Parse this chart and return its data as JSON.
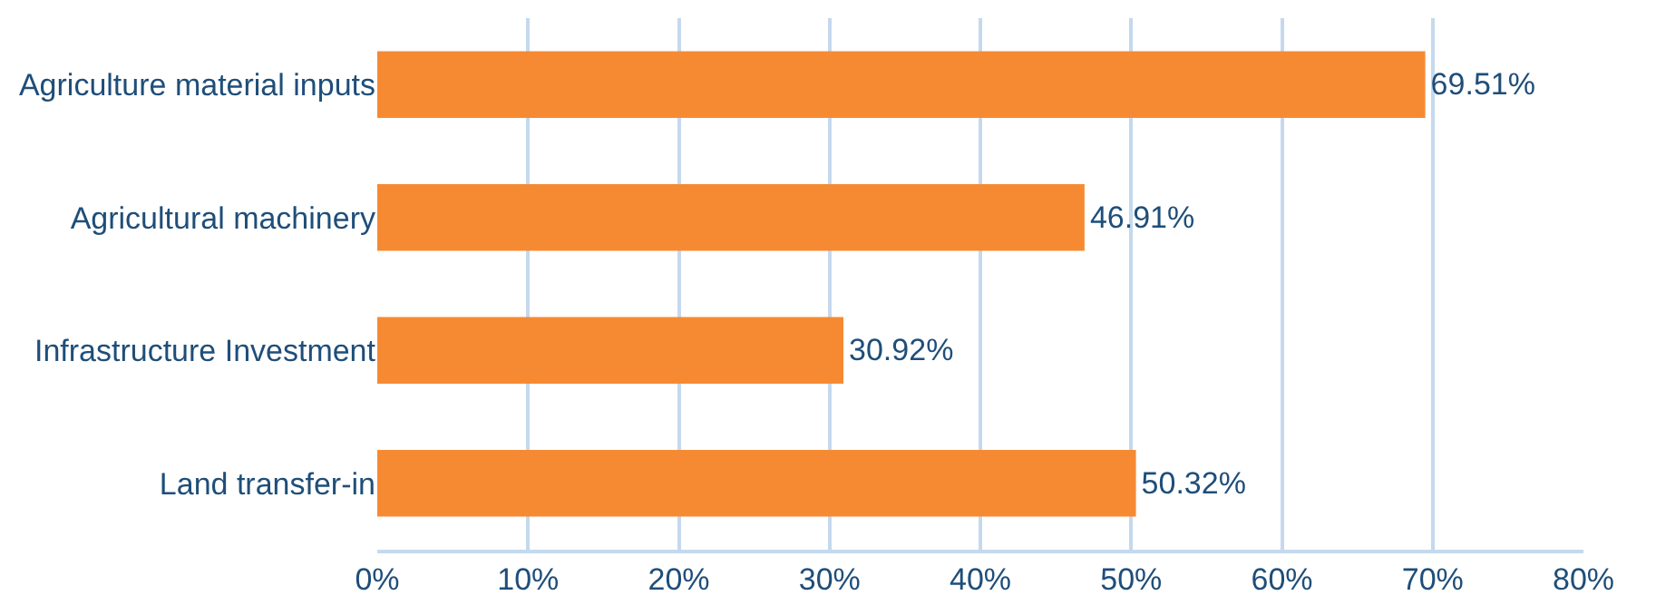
{
  "chart_data": {
    "type": "bar",
    "orientation": "horizontal",
    "categories": [
      "Agriculture material inputs",
      "Agricultural machinery",
      "Infrastructure Investment",
      "Land transfer-in"
    ],
    "values": [
      69.51,
      46.91,
      30.92,
      50.32
    ],
    "value_labels": [
      "69.51%",
      "46.91%",
      "30.92%",
      "50.32%"
    ],
    "color": "#f68a33",
    "xlim": [
      0,
      80
    ],
    "xticks": [
      {
        "value": 0,
        "label": "0%"
      },
      {
        "value": 10,
        "label": "10%"
      },
      {
        "value": 20,
        "label": "20%"
      },
      {
        "value": 30,
        "label": "30%"
      },
      {
        "value": 40,
        "label": "40%"
      },
      {
        "value": 50,
        "label": "50%"
      },
      {
        "value": 60,
        "label": "60%"
      },
      {
        "value": 70,
        "label": "70%"
      },
      {
        "value": 80,
        "label": "80%"
      }
    ],
    "grid": "x"
  }
}
